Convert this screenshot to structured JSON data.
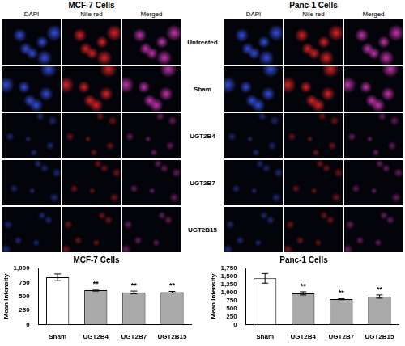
{
  "panels": [
    {
      "title": "MCF-7 Cells",
      "columns": [
        "DAPI",
        "Nile red",
        "Merged"
      ]
    },
    {
      "title": "Panc-1 Cells",
      "columns": [
        "DAPI",
        "Nile red",
        "Merged"
      ]
    }
  ],
  "rows": [
    "Untreated",
    "Sham",
    "UGT2B4",
    "UGT2B7",
    "UGT2B15"
  ],
  "chart_data": [
    {
      "type": "bar",
      "title": "MCF-7 Cells",
      "y_label": "Mean Intensity",
      "categories": [
        "Sham",
        "UGT2B4",
        "UGT2B7",
        "UGT2B15"
      ],
      "values": [
        840,
        610,
        570,
        575
      ],
      "errors": [
        60,
        15,
        25,
        15
      ],
      "colors": [
        "#ffffff",
        "#aaaaaa",
        "#aaaaaa",
        "#aaaaaa"
      ],
      "ylim": [
        0,
        1000
      ],
      "yticks": [
        0,
        250,
        500,
        750,
        1000
      ],
      "grid": false,
      "annotations": [
        {
          "category": "UGT2B4",
          "text": "**"
        },
        {
          "category": "UGT2B7",
          "text": "**"
        },
        {
          "category": "UGT2B15",
          "text": "**"
        }
      ]
    },
    {
      "type": "bar",
      "title": "Panc-1 Cells",
      "y_label": "Mean Intensity",
      "categories": [
        "Sham",
        "UGT2B4",
        "UGT2B7",
        "UGT2B15"
      ],
      "values": [
        1440,
        970,
        790,
        870
      ],
      "errors": [
        150,
        50,
        15,
        50
      ],
      "colors": [
        "#ffffff",
        "#aaaaaa",
        "#aaaaaa",
        "#aaaaaa"
      ],
      "ylim": [
        0,
        1750
      ],
      "yticks": [
        0,
        250,
        500,
        750,
        1000,
        1250,
        1500,
        1750
      ],
      "grid": false,
      "annotations": [
        {
          "category": "UGT2B4",
          "text": "**"
        },
        {
          "category": "UGT2B7",
          "text": "**"
        },
        {
          "category": "UGT2B15",
          "text": "**"
        }
      ]
    }
  ]
}
